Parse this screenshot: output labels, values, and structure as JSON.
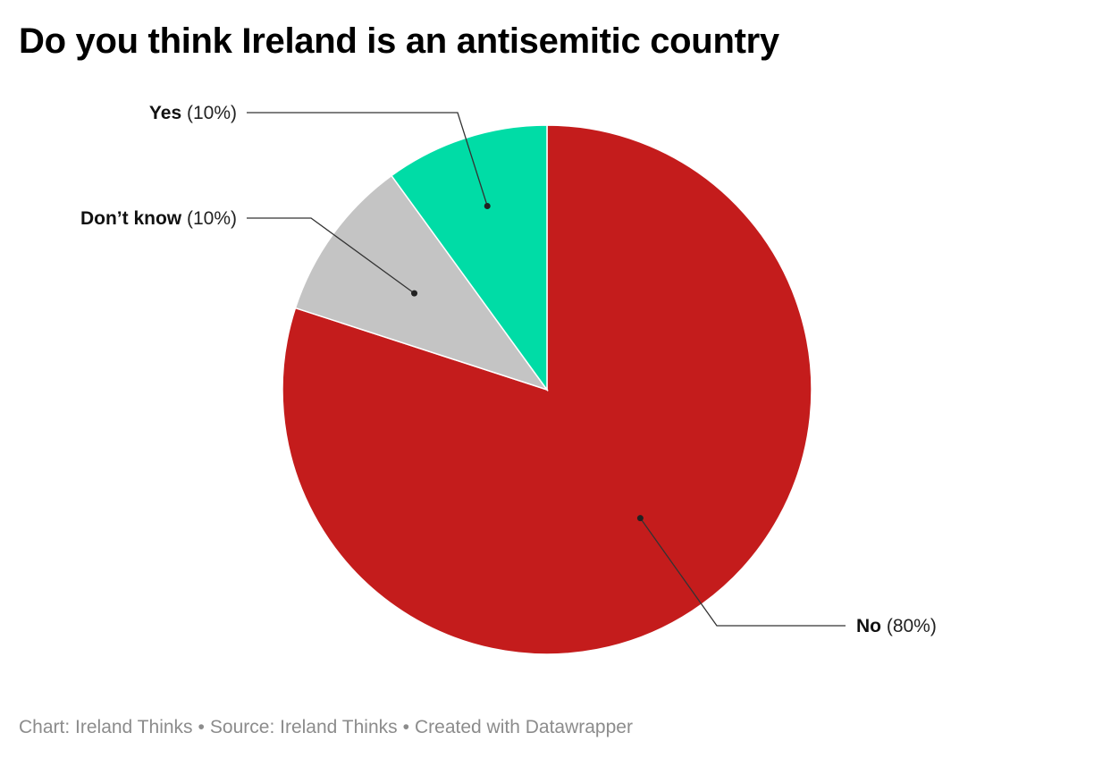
{
  "chart_data": {
    "type": "pie",
    "title": "Do you think Ireland is an antisemitic country",
    "slices": [
      {
        "label": "No",
        "value": 80,
        "display": "(80%)",
        "color": "#c41c1c"
      },
      {
        "label": "Don’t know",
        "value": 10,
        "display": "(10%)",
        "color": "#c4c4c4"
      },
      {
        "label": "Yes",
        "value": 10,
        "display": "(10%)",
        "color": "#00dca6"
      }
    ]
  },
  "footer": {
    "chart_credit": "Chart: Ireland Thinks",
    "source": "Source: Ireland Thinks",
    "created_with": "Created with Datawrapper",
    "separator": "•"
  }
}
